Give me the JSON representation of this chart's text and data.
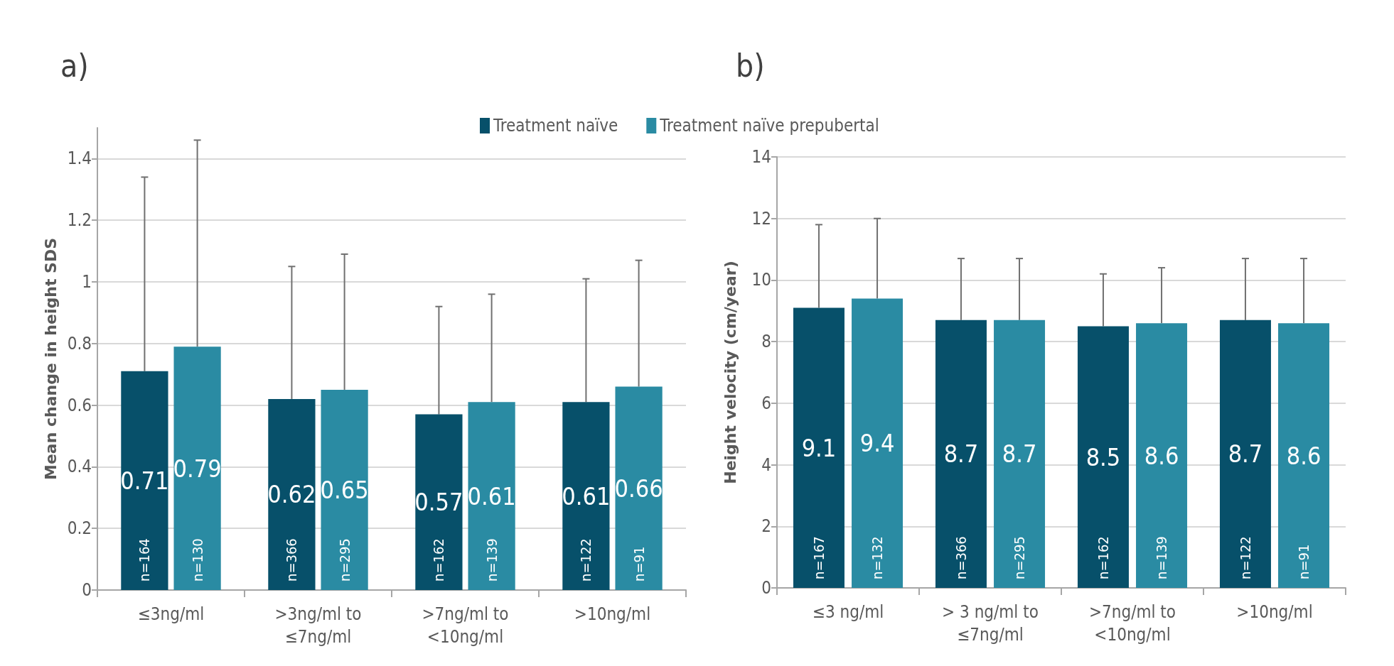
{
  "chart_data": [
    {
      "type": "bar",
      "title": "a)",
      "ylabel": "Mean change in height SDS",
      "categories": [
        "≤3ng/ml",
        ">3ng/ml to\n≤7ng/ml",
        ">7ng/ml to\n<10ng/ml",
        ">10ng/ml"
      ],
      "series": [
        {
          "name": "Treatment naïve",
          "color": "#07506a",
          "values": [
            0.71,
            0.62,
            0.57,
            0.61
          ],
          "errors": [
            [
              0.71,
              1.34
            ],
            [
              0.62,
              1.05
            ],
            [
              0.57,
              0.92
            ],
            [
              0.61,
              1.01
            ]
          ]
        },
        {
          "name": "Treatment naïve prepubertal",
          "color": "#2a8ba3",
          "values": [
            0.79,
            0.65,
            0.61,
            0.66
          ],
          "errors": [
            [
              0.79,
              1.46
            ],
            [
              0.65,
              1.09
            ],
            [
              0.61,
              0.96
            ],
            [
              0.66,
              1.07
            ]
          ]
        }
      ],
      "ylim": [
        0,
        1.5
      ],
      "yticks": [
        0,
        0.2,
        0.4,
        0.6,
        0.8,
        1,
        1.2,
        1.4
      ],
      "grid": "y",
      "legend": "top",
      "data_labels": true,
      "annotations": [
        "n=164",
        "n=366",
        "n=162",
        "n=122",
        "n=130",
        "n=295",
        "n=139",
        "n=91"
      ]
    },
    {
      "type": "bar",
      "title": "b)",
      "ylabel": "Height velocity (cm/year)",
      "categories": [
        "≤3 ng/ml",
        "> 3 ng/ml to\n≤7ng/ml",
        ">7ng/ml to\n<10ng/ml",
        ">10ng/ml"
      ],
      "series": [
        {
          "color": "#07506a",
          "values": [
            9.1,
            8.7,
            8.5,
            8.7
          ],
          "errors": [
            [
              9.1,
              11.8
            ],
            [
              8.7,
              10.7
            ],
            [
              8.5,
              10.2
            ],
            [
              8.7,
              10.7
            ]
          ]
        },
        {
          "color": "#2a8ba3",
          "values": [
            9.4,
            8.7,
            8.6,
            8.6
          ],
          "errors": [
            [
              9.4,
              12
            ],
            [
              8.7,
              10.7
            ],
            [
              8.6,
              10.4
            ],
            [
              8.6,
              10.7
            ]
          ]
        }
      ],
      "ylim": [
        0,
        14
      ],
      "yticks": [
        0,
        2,
        4,
        6,
        8,
        10,
        12,
        14
      ],
      "grid": "y",
      "data_labels": true,
      "annotations": [
        "n=167",
        "n=366",
        "n=162",
        "n=122",
        "n=132",
        "n=295",
        "n=139",
        "n=91"
      ]
    }
  ]
}
